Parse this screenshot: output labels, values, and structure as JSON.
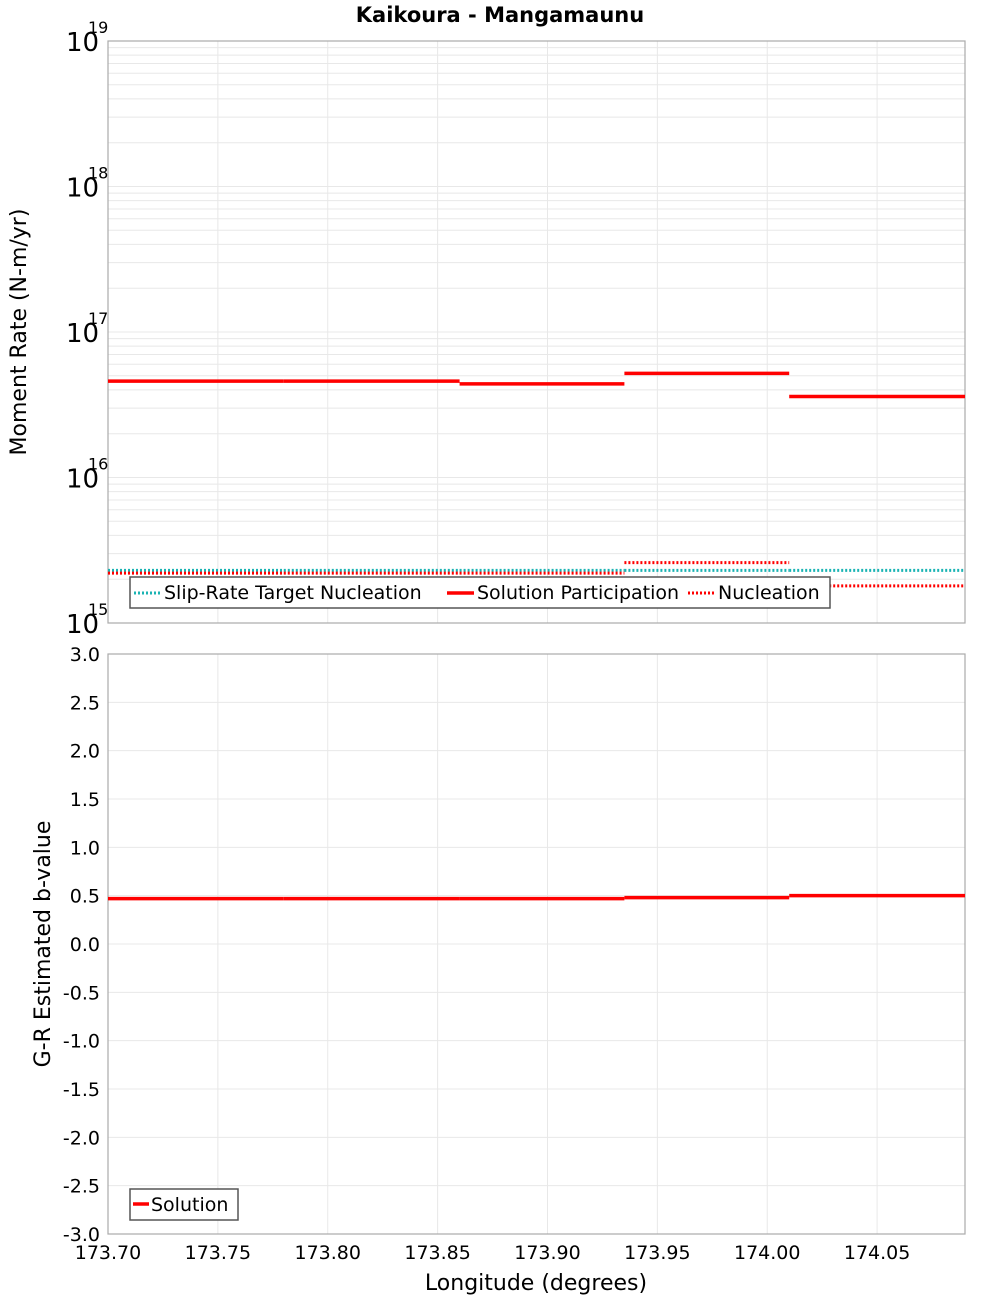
{
  "chart_data": [
    {
      "type": "line",
      "title": "Kaikoura - Mangamaunu",
      "xlabel": "Longitude (degrees)",
      "ylabel": "Moment Rate (N-m/yr)",
      "yscale": "log",
      "ylim": [
        1000000000000000.0,
        1e+19
      ],
      "xlim": [
        173.7,
        174.09
      ],
      "grid": true,
      "legend_position": "lower-left",
      "y_tick_labels": [
        {
          "base": "10",
          "exp": "15",
          "value": 1000000000000000.0
        },
        {
          "base": "10",
          "exp": "16",
          "value": 1e+16
        },
        {
          "base": "10",
          "exp": "17",
          "value": 1e+17
        },
        {
          "base": "10",
          "exp": "18",
          "value": 1e+18
        },
        {
          "base": "10",
          "exp": "19",
          "value": 1e+19
        }
      ],
      "segment_edges": [
        173.7,
        173.78,
        173.86,
        173.935,
        174.01,
        174.09
      ],
      "series": [
        {
          "name": "Slip-Rate Target Nucleation",
          "color": "#1ab3b3",
          "style": "dotted",
          "values": [
            2300000000000000.0,
            2300000000000000.0,
            2300000000000000.0,
            2300000000000000.0,
            2300000000000000.0
          ]
        },
        {
          "name": "Solution Participation",
          "color": "#ff0000",
          "style": "solid",
          "values": [
            4.6e+16,
            4.6e+16,
            4.4e+16,
            5.2e+16,
            3.6e+16
          ]
        },
        {
          "name": "Nucleation",
          "color": "#ff0000",
          "style": "dotted",
          "values": [
            2200000000000000.0,
            2200000000000000.0,
            2200000000000000.0,
            2600000000000000.0,
            1800000000000000.0
          ]
        }
      ]
    },
    {
      "type": "line",
      "title": "",
      "xlabel": "Longitude (degrees)",
      "ylabel": "G-R Estimated b-value",
      "ylim": [
        -3.0,
        3.0
      ],
      "xlim": [
        173.7,
        174.09
      ],
      "grid": true,
      "legend_position": "lower-left",
      "y_tick_labels": [
        "3.0",
        "2.5",
        "2.0",
        "1.5",
        "1.0",
        "0.5",
        "0.0",
        "-0.5",
        "-1.0",
        "-1.5",
        "-2.0",
        "-2.5",
        "-3.0"
      ],
      "x_tick_labels": [
        "173.70",
        "173.75",
        "173.80",
        "173.85",
        "173.90",
        "173.95",
        "174.00",
        "174.05"
      ],
      "segment_edges": [
        173.7,
        173.78,
        173.86,
        173.935,
        174.01,
        174.09
      ],
      "series": [
        {
          "name": "Solution",
          "color": "#ff0000",
          "style": "solid",
          "values": [
            0.47,
            0.47,
            0.47,
            0.48,
            0.5
          ]
        }
      ]
    }
  ],
  "top": {
    "title": "Kaikoura - Mangamaunu",
    "ylabel": "Moment Rate (N-m/yr)",
    "legend": [
      "Slip-Rate Target Nucleation",
      "Solution Participation",
      "Nucleation"
    ]
  },
  "bottom": {
    "ylabel": "G-R Estimated b-value",
    "xlabel": "Longitude (degrees)",
    "legend": [
      "Solution"
    ]
  }
}
